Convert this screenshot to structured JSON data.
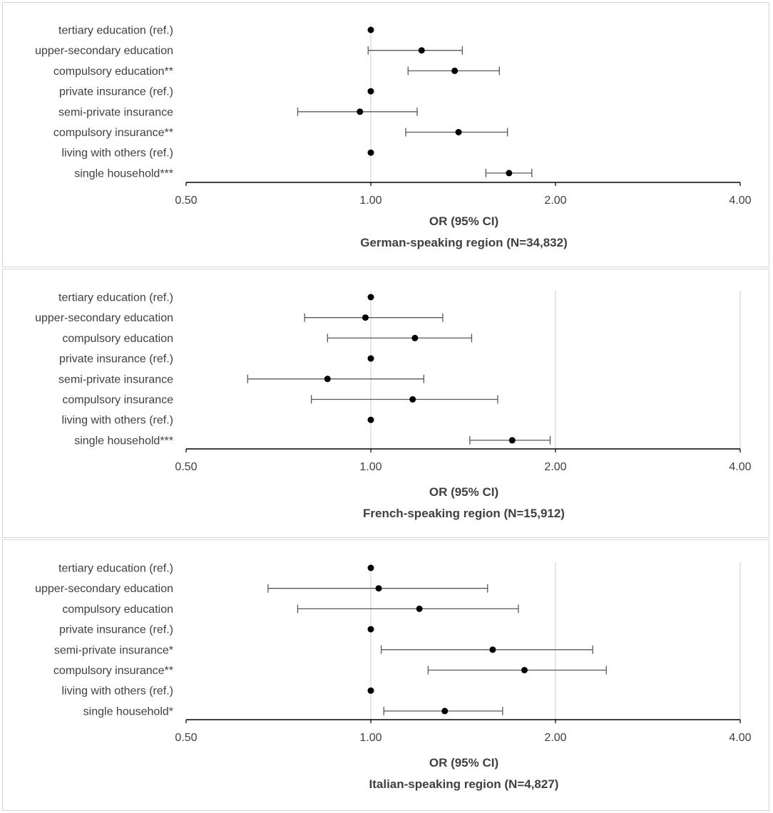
{
  "colors": {
    "axis": "#000000",
    "gridline": "#d9d9d9",
    "marker": "#000000",
    "whisker": "#595959",
    "text": "#404040"
  },
  "chart_data": [
    {
      "type": "forest",
      "title": "German-speaking region (N=34,832)",
      "xlabel": "OR (95% CI)",
      "xscale": "log2",
      "xlim": [
        0.5,
        4.0
      ],
      "xticks": [
        0.5,
        1.0,
        2.0,
        4.0
      ],
      "xtick_labels": [
        "0.50",
        "1.00",
        "2.00",
        "4.00"
      ],
      "gridlines": [
        1.0
      ],
      "rows": [
        {
          "label": "tertiary education (ref.)",
          "or": 1.0,
          "lo": null,
          "hi": null
        },
        {
          "label": "upper-secondary education",
          "or": 1.21,
          "lo": 0.99,
          "hi": 1.41
        },
        {
          "label": "compulsory education**",
          "or": 1.37,
          "lo": 1.15,
          "hi": 1.62
        },
        {
          "label": "private insurance (ref.)",
          "or": 1.0,
          "lo": null,
          "hi": null
        },
        {
          "label": "semi-private insurance",
          "or": 0.96,
          "lo": 0.76,
          "hi": 1.19
        },
        {
          "label": "compulsory insurance**",
          "or": 1.39,
          "lo": 1.14,
          "hi": 1.67
        },
        {
          "label": "living with others (ref.)",
          "or": 1.0,
          "lo": null,
          "hi": null
        },
        {
          "label": "single household***",
          "or": 1.68,
          "lo": 1.54,
          "hi": 1.83
        }
      ]
    },
    {
      "type": "forest",
      "title": "French-speaking region (N=15,912)",
      "xlabel": "OR (95% CI)",
      "xscale": "log2",
      "xlim": [
        0.5,
        4.0
      ],
      "xticks": [
        0.5,
        1.0,
        2.0,
        4.0
      ],
      "xtick_labels": [
        "0.50",
        "1.00",
        "2.00",
        "4.00"
      ],
      "gridlines": [
        1.0,
        2.0
      ],
      "rows": [
        {
          "label": "tertiary education (ref.)",
          "or": 1.0,
          "lo": null,
          "hi": null
        },
        {
          "label": "upper-secondary education",
          "or": 0.98,
          "lo": 0.78,
          "hi": 1.31
        },
        {
          "label": "compulsory education",
          "or": 1.18,
          "lo": 0.85,
          "hi": 1.46
        },
        {
          "label": "private insurance (ref.)",
          "or": 1.0,
          "lo": null,
          "hi": null
        },
        {
          "label": "semi-private insurance",
          "or": 0.85,
          "lo": 0.63,
          "hi": 1.22
        },
        {
          "label": "compulsory insurance",
          "or": 1.17,
          "lo": 0.8,
          "hi": 1.61
        },
        {
          "label": "living with others (ref.)",
          "or": 1.0,
          "lo": null,
          "hi": null
        },
        {
          "label": "single household***",
          "or": 1.7,
          "lo": 1.45,
          "hi": 1.96
        }
      ]
    },
    {
      "type": "forest",
      "title": "Italian-speaking region (N=4,827)",
      "xlabel": "OR (95% CI)",
      "xscale": "log2",
      "xlim": [
        0.5,
        4.0
      ],
      "xticks": [
        0.5,
        1.0,
        2.0,
        4.0
      ],
      "xtick_labels": [
        "0.50",
        "1.00",
        "2.00",
        "4.00"
      ],
      "gridlines": [
        1.0,
        2.0
      ],
      "rows": [
        {
          "label": "tertiary education (ref.)",
          "or": 1.0,
          "lo": null,
          "hi": null
        },
        {
          "label": "upper-secondary education",
          "or": 1.03,
          "lo": 0.68,
          "hi": 1.55
        },
        {
          "label": "compulsory education",
          "or": 1.2,
          "lo": 0.76,
          "hi": 1.74
        },
        {
          "label": "private insurance (ref.)",
          "or": 1.0,
          "lo": null,
          "hi": null
        },
        {
          "label": "semi-private insurance*",
          "or": 1.58,
          "lo": 1.04,
          "hi": 2.3
        },
        {
          "label": "compulsory insurance**",
          "or": 1.78,
          "lo": 1.24,
          "hi": 2.42
        },
        {
          "label": "living with others (ref.)",
          "or": 1.0,
          "lo": null,
          "hi": null
        },
        {
          "label": "single household*",
          "or": 1.32,
          "lo": 1.05,
          "hi": 1.64
        }
      ]
    }
  ]
}
